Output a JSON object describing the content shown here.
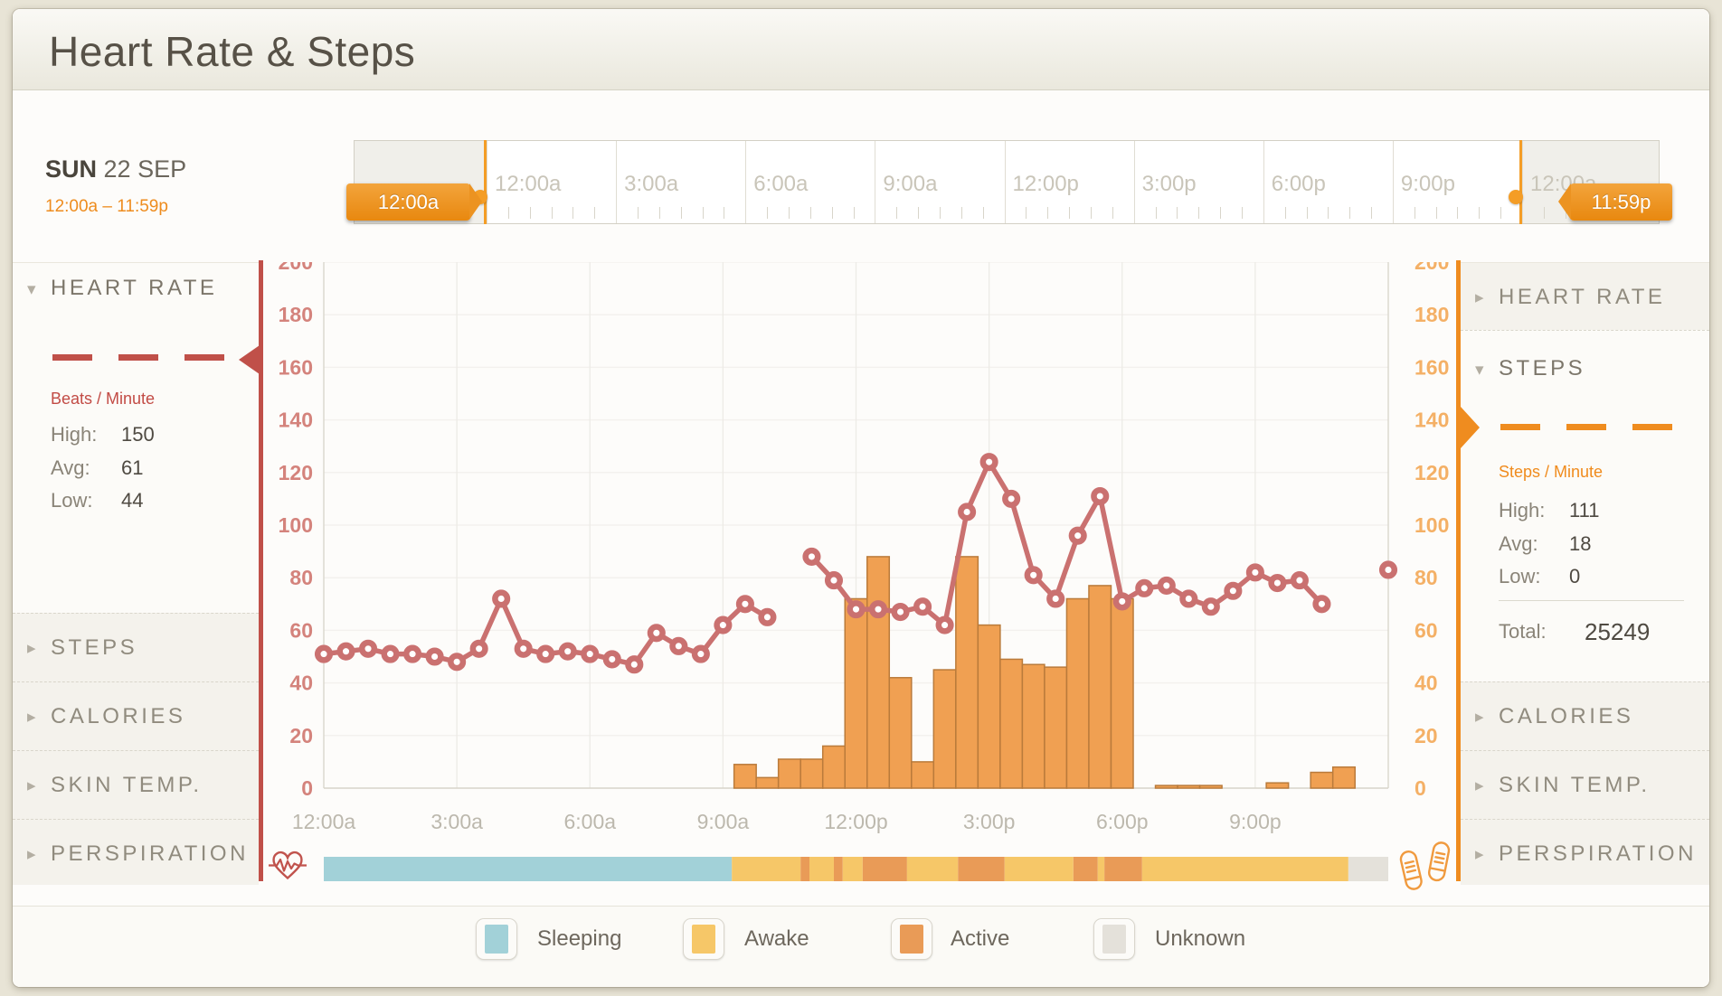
{
  "window": {
    "title": "Heart Rate & Steps"
  },
  "date_bar": {
    "day": "SUN",
    "date": "22 SEP",
    "range": "12:00a – 11:59p",
    "timeline": {
      "tick_labels": [
        "12:00a",
        "3:00a",
        "6:00a",
        "9:00a",
        "12:00p",
        "3:00p",
        "6:00p",
        "9:00p",
        "12:00a"
      ],
      "start_tag": "12:00a",
      "end_tag": "11:59p"
    }
  },
  "sidebar_left": {
    "expanded": {
      "label": "HEART RATE",
      "unit": "Beats / Minute",
      "stats": [
        {
          "label": "High:",
          "value": "150"
        },
        {
          "label": "Avg:",
          "value": "61"
        },
        {
          "label": "Low:",
          "value": "44"
        }
      ]
    },
    "collapsed": [
      "STEPS",
      "CALORIES",
      "SKIN TEMP.",
      "PERSPIRATION"
    ]
  },
  "sidebar_right": {
    "collapsed_top": "HEART RATE",
    "expanded": {
      "label": "STEPS",
      "unit": "Steps / Minute",
      "stats": [
        {
          "label": "High:",
          "value": "111"
        },
        {
          "label": "Avg:",
          "value": "18"
        },
        {
          "label": "Low:",
          "value": "0"
        }
      ],
      "total_label": "Total:",
      "total_value": "25249"
    },
    "collapsed_bottom": [
      "CALORIES",
      "SKIN TEMP.",
      "PERSPIRATION"
    ]
  },
  "legend": [
    {
      "label": "Sleeping",
      "color": "#a2d1d8"
    },
    {
      "label": "Awake",
      "color": "#f6c768"
    },
    {
      "label": "Active",
      "color": "#e99b57"
    },
    {
      "label": "Unknown",
      "color": "#e4e1da"
    }
  ],
  "chart_data": {
    "type": "line+bar",
    "title": "Heart Rate & Steps",
    "x_axis": {
      "hours": 24,
      "tick_interval_h": 3,
      "labels": [
        "12:00a",
        "3:00a",
        "6:00a",
        "9:00a",
        "12:00p",
        "3:00p",
        "6:00p",
        "9:00p"
      ]
    },
    "y_axis": {
      "min": 0,
      "max": 200,
      "tick": 20,
      "left_label": "Beats / Minute",
      "right_label": "Steps / Minute"
    },
    "heart_rate_bpm": {
      "name": "Heart Rate",
      "interval_min": 30,
      "points": [
        [
          0,
          51
        ],
        [
          0.5,
          52
        ],
        [
          1,
          53
        ],
        [
          1.5,
          51
        ],
        [
          2,
          51
        ],
        [
          2.5,
          50
        ],
        [
          3,
          48
        ],
        [
          3.5,
          53
        ],
        [
          4,
          72
        ],
        [
          4.5,
          53
        ],
        [
          5,
          51
        ],
        [
          5.5,
          52
        ],
        [
          6,
          51
        ],
        [
          6.5,
          49
        ],
        [
          7,
          47
        ],
        [
          7.5,
          59
        ],
        [
          8,
          54
        ],
        [
          8.5,
          51
        ],
        [
          9,
          62
        ],
        [
          9.5,
          70
        ],
        [
          10,
          65
        ],
        [
          10.5,
          null
        ],
        [
          11,
          88
        ],
        [
          11.5,
          79
        ],
        [
          12,
          68
        ],
        [
          12.5,
          68
        ],
        [
          13,
          67
        ],
        [
          13.5,
          69
        ],
        [
          14,
          62
        ],
        [
          14.5,
          105
        ],
        [
          15,
          124
        ],
        [
          15.5,
          110
        ],
        [
          16,
          81
        ],
        [
          16.5,
          72
        ],
        [
          17,
          96
        ],
        [
          17.5,
          111
        ],
        [
          18,
          71
        ],
        [
          18.5,
          76
        ],
        [
          19,
          77
        ],
        [
          19.5,
          72
        ],
        [
          20,
          69
        ],
        [
          20.5,
          75
        ],
        [
          21,
          82
        ],
        [
          21.5,
          78
        ],
        [
          22,
          79
        ],
        [
          22.5,
          70
        ],
        [
          23,
          null
        ],
        [
          23.5,
          null
        ],
        [
          24,
          83
        ]
      ]
    },
    "steps_bars": {
      "name": "Steps",
      "bar_width_h": 0.5,
      "bars": [
        [
          9.25,
          9
        ],
        [
          9.75,
          4
        ],
        [
          10.25,
          11
        ],
        [
          10.75,
          11
        ],
        [
          11.25,
          16
        ],
        [
          11.75,
          72
        ],
        [
          12.25,
          88
        ],
        [
          12.75,
          42
        ],
        [
          13.25,
          10
        ],
        [
          13.75,
          45
        ],
        [
          14.25,
          88
        ],
        [
          14.75,
          62
        ],
        [
          15.25,
          49
        ],
        [
          15.75,
          47
        ],
        [
          16.25,
          46
        ],
        [
          16.75,
          72
        ],
        [
          17.25,
          77
        ],
        [
          17.75,
          72
        ],
        [
          18.75,
          1
        ],
        [
          19.25,
          1
        ],
        [
          19.75,
          1
        ],
        [
          21.25,
          2
        ],
        [
          22.25,
          6
        ],
        [
          22.75,
          8
        ]
      ]
    },
    "activity_band": [
      {
        "state": "sleeping",
        "from_h": 0,
        "to_h": 9.2
      },
      {
        "state": "awake",
        "from_h": 9.2,
        "to_h": 10.75
      },
      {
        "state": "active",
        "from_h": 10.75,
        "to_h": 10.95
      },
      {
        "state": "awake",
        "from_h": 10.95,
        "to_h": 11.5
      },
      {
        "state": "active",
        "from_h": 11.5,
        "to_h": 11.7
      },
      {
        "state": "awake",
        "from_h": 11.7,
        "to_h": 12.15
      },
      {
        "state": "active",
        "from_h": 12.15,
        "to_h": 13.15
      },
      {
        "state": "awake",
        "from_h": 13.15,
        "to_h": 14.3
      },
      {
        "state": "active",
        "from_h": 14.3,
        "to_h": 15.35
      },
      {
        "state": "awake",
        "from_h": 15.35,
        "to_h": 16.9
      },
      {
        "state": "active",
        "from_h": 16.9,
        "to_h": 17.45
      },
      {
        "state": "awake",
        "from_h": 17.45,
        "to_h": 17.6
      },
      {
        "state": "active",
        "from_h": 17.6,
        "to_h": 18.45
      },
      {
        "state": "awake",
        "from_h": 18.45,
        "to_h": 23.1
      },
      {
        "state": "unknown",
        "from_h": 23.1,
        "to_h": 24
      }
    ],
    "colors": {
      "heart_rate": "#ca7170",
      "bars_fill": "#f0a052",
      "bars_stroke": "#ba7b3b",
      "left_axis_labels": "#d4837c",
      "right_axis_labels": "#f4b066",
      "x_labels": "#bcb8ad",
      "grid_h": "#f3f1ee",
      "grid_v": "#edebe6",
      "axis_line": "#d8d4c9",
      "sleeping": "#a2d1d8",
      "awake": "#f6c768",
      "active": "#e99b57",
      "unknown": "#e4e1da"
    }
  }
}
